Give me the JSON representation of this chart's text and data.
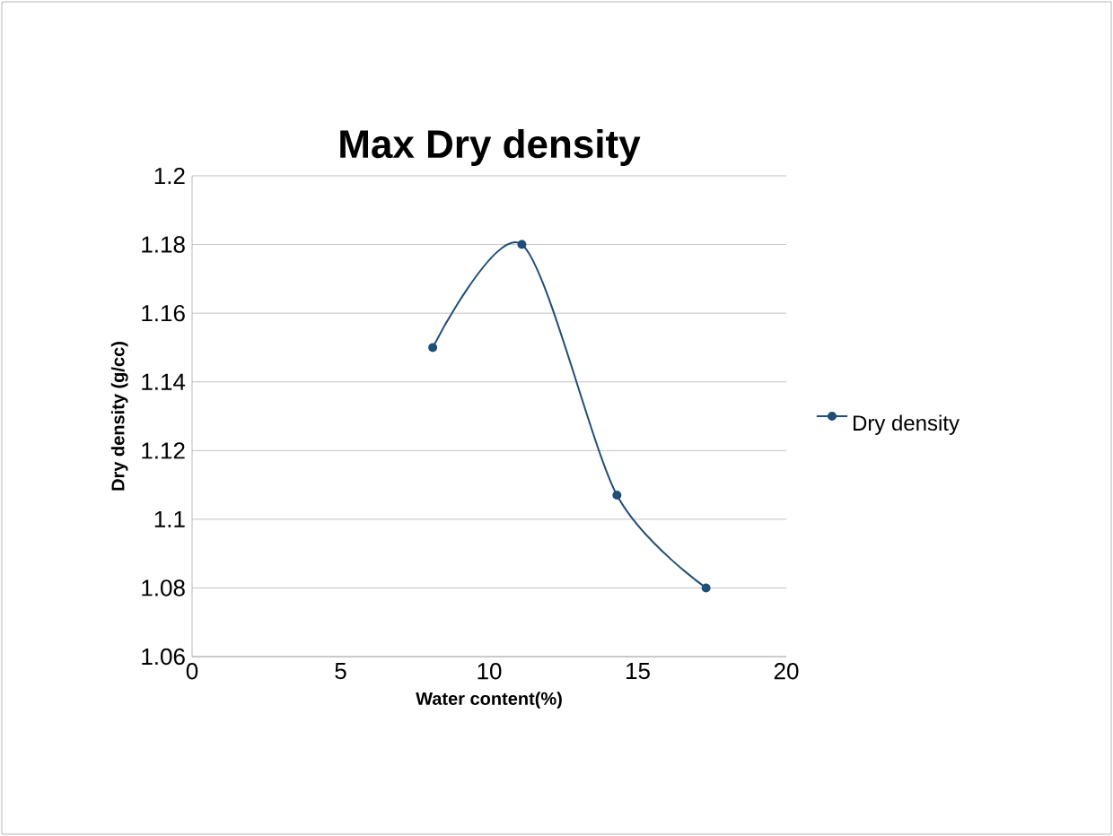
{
  "chart_data": {
    "type": "line",
    "title": "Max Dry density",
    "xlabel": "Water content(%)",
    "ylabel": "Dry density (g/cc)",
    "x": [
      8.1,
      11.1,
      14.3,
      17.3
    ],
    "series": [
      {
        "name": "Dry density",
        "color": "#1f4e79",
        "values": [
          1.15,
          1.18,
          1.107,
          1.08
        ]
      }
    ],
    "xlim": [
      0,
      20
    ],
    "xticks": [
      0,
      5,
      10,
      15,
      20
    ],
    "ylim": [
      1.06,
      1.2
    ],
    "yticks": [
      1.06,
      1.08,
      1.1,
      1.12,
      1.14,
      1.16,
      1.18,
      1.2
    ],
    "grid": "y",
    "legend": "right",
    "marker": "circle",
    "line_style": "solid"
  }
}
